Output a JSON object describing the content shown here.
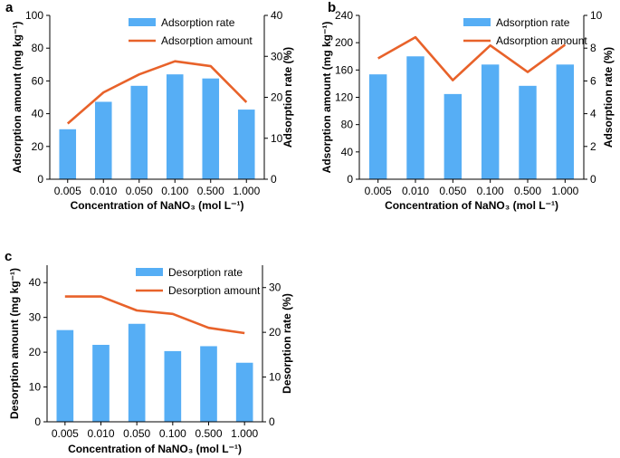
{
  "colors": {
    "bar": "#56aef5",
    "line": "#e8622a",
    "axis": "#000000"
  },
  "chart_data": [
    {
      "panel": "a",
      "type": "bar+line",
      "categories": [
        "0.005",
        "0.010",
        "0.050",
        "0.100",
        "0.500",
        "1.000"
      ],
      "xlabel": "Concentration of NaNO₃ (mol L⁻¹)",
      "ylabel": "Adsorption amount (mg kg⁻¹)",
      "ylabel_right": "Adsorption rate (%)",
      "ylim": [
        0,
        100
      ],
      "yticks": [
        "0",
        "20",
        "40",
        "60",
        "80",
        "100"
      ],
      "ylim_right": [
        0,
        40
      ],
      "yticks_right": [
        "0",
        "10",
        "20",
        "30",
        "40"
      ],
      "legend_position": "top-right",
      "series": [
        {
          "name": "Adsorption rate",
          "kind": "bar",
          "axis": "right",
          "values": [
            12.2,
            18.9,
            22.8,
            25.6,
            24.6,
            17.0
          ]
        },
        {
          "name": "Adsorption amount",
          "kind": "line",
          "axis": "left",
          "values": [
            34,
            53,
            64,
            72,
            69,
            47
          ]
        }
      ]
    },
    {
      "panel": "b",
      "type": "bar+line",
      "categories": [
        "0.005",
        "0.010",
        "0.050",
        "0.100",
        "0.500",
        "1.000"
      ],
      "xlabel": "Concentration of NaNO₃ (mol L⁻¹)",
      "ylabel": "Adsorption amount (mg kg⁻¹)",
      "ylabel_right": "Adsorption rate (%)",
      "ylim": [
        0,
        240
      ],
      "yticks": [
        "0",
        "40",
        "80",
        "120",
        "160",
        "200",
        "240"
      ],
      "ylim_right": [
        0,
        10
      ],
      "yticks_right": [
        "0",
        "2",
        "4",
        "6",
        "8",
        "10"
      ],
      "legend_position": "top-right",
      "series": [
        {
          "name": "Adsorption rate",
          "kind": "bar",
          "axis": "right",
          "values": [
            6.4,
            7.5,
            5.2,
            7.0,
            5.7,
            7.0
          ]
        },
        {
          "name": "Adsorption amount",
          "kind": "line",
          "axis": "left",
          "values": [
            177,
            208,
            145,
            196,
            157,
            197
          ]
        }
      ]
    },
    {
      "panel": "c",
      "type": "bar+line",
      "categories": [
        "0.005",
        "0.010",
        "0.050",
        "0.100",
        "0.500",
        "1.000"
      ],
      "xlabel": "Concentration of NaNO₃ (mol L⁻¹)",
      "ylabel": "Desorption amount (mg kg⁻¹)",
      "ylabel_right": "Desorption rate (%)",
      "ylim": [
        0,
        45
      ],
      "yticks": [
        "0",
        "10",
        "20",
        "30",
        "40"
      ],
      "ylim_right": [
        0,
        35
      ],
      "yticks_right": [
        "0",
        "10",
        "20",
        "30"
      ],
      "legend_position": "top-right",
      "series": [
        {
          "name": "Desorption rate",
          "kind": "bar",
          "axis": "right",
          "values": [
            20.5,
            17.2,
            21.9,
            15.8,
            16.9,
            13.2
          ]
        },
        {
          "name": "Desorption amount",
          "kind": "line",
          "axis": "left",
          "values": [
            36.0,
            36.0,
            32.0,
            31.0,
            27.0,
            25.5
          ]
        }
      ]
    }
  ]
}
